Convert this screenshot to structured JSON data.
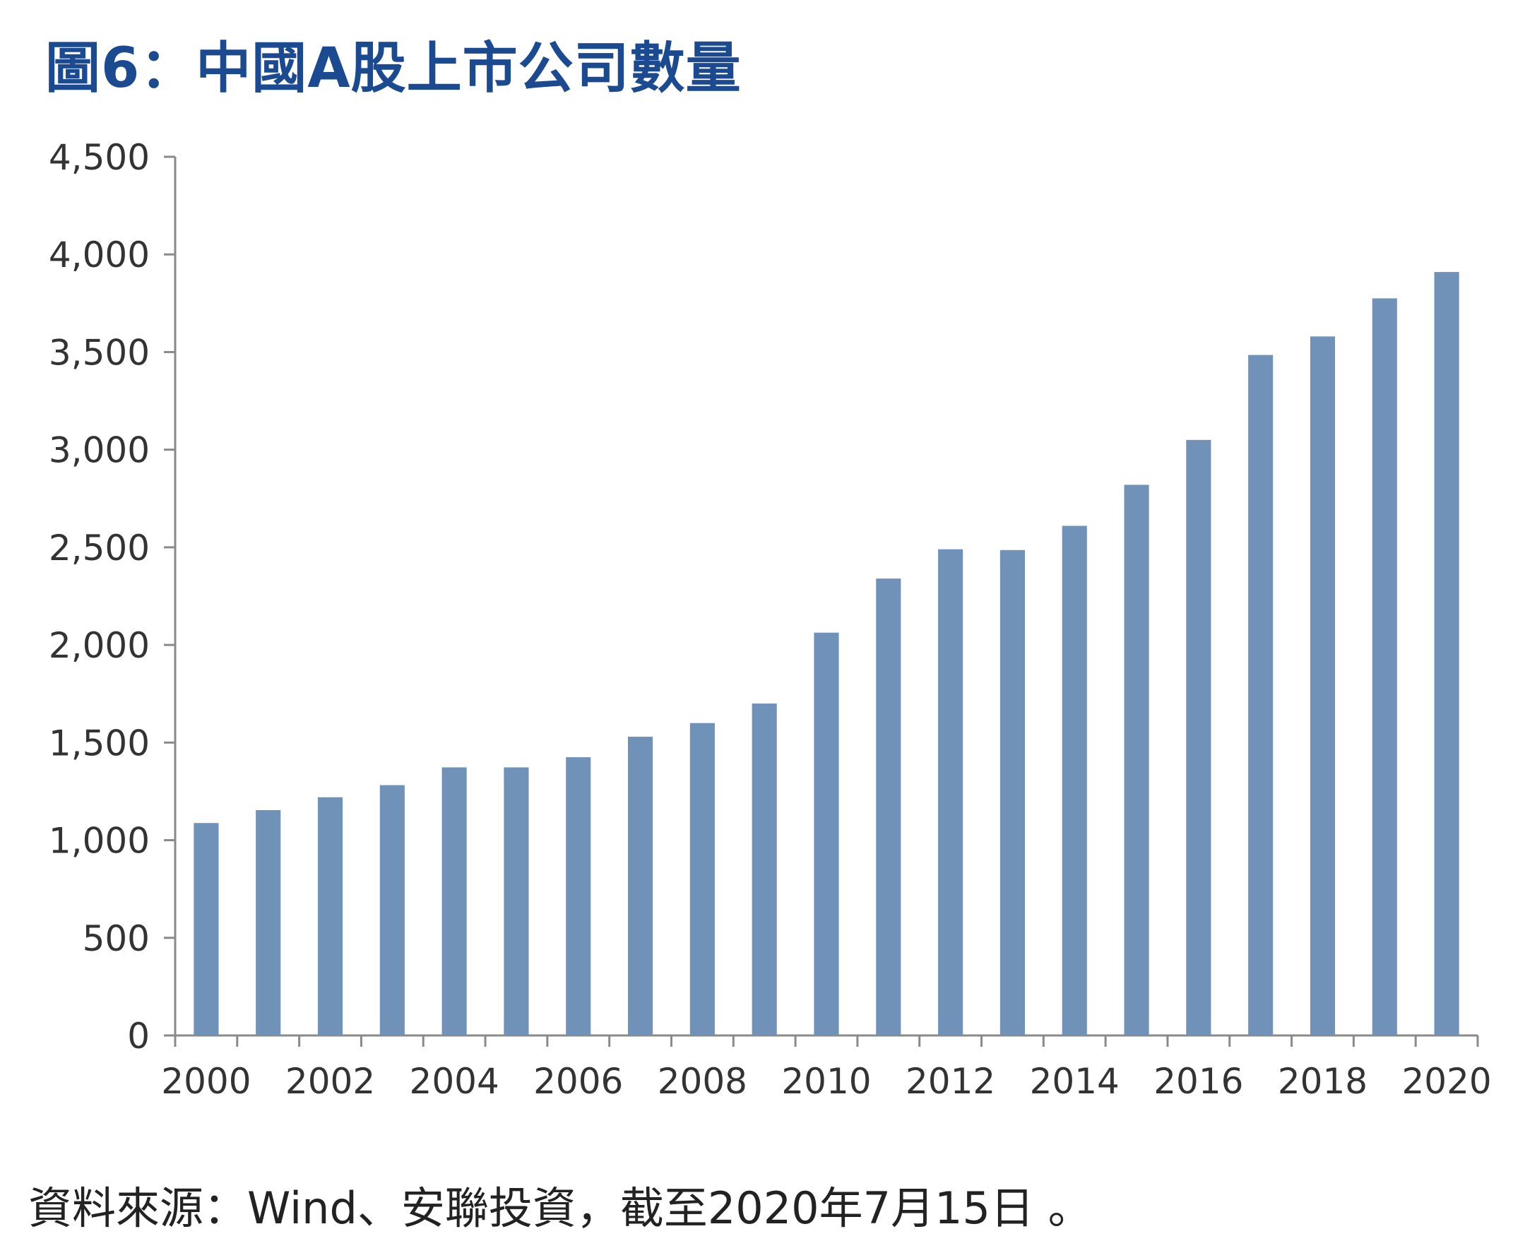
{
  "title": "圖6：中國A股上市公司數量",
  "source": "資料來源：Wind、安聯投資，截至2020年7月15日 。",
  "colors": {
    "title": "#1b4a91",
    "bar": "#7092b8",
    "axis": "#8a8a8a",
    "tick_text": "#333333"
  },
  "chart_data": {
    "type": "bar",
    "title": "圖6：中國A股上市公司數量",
    "xlabel": "",
    "ylabel": "",
    "ylim": [
      0,
      4500
    ],
    "yticks": [
      0,
      500,
      1000,
      1500,
      2000,
      2500,
      3000,
      3500,
      4000,
      4500
    ],
    "ytick_labels": [
      "0",
      "500",
      "1,000",
      "1,500",
      "2,000",
      "2,500",
      "3,000",
      "3,500",
      "4,000",
      "4,500"
    ],
    "categories": [
      "2000",
      "2001",
      "2002",
      "2003",
      "2004",
      "2005",
      "2006",
      "2007",
      "2008",
      "2009",
      "2010",
      "2011",
      "2012",
      "2013",
      "2014",
      "2015",
      "2016",
      "2017",
      "2018",
      "2019",
      "2020"
    ],
    "xtick_labels": [
      "2000",
      "2002",
      "2004",
      "2006",
      "2008",
      "2010",
      "2012",
      "2014",
      "2016",
      "2018",
      "2020"
    ],
    "values": [
      1088,
      1154,
      1220,
      1282,
      1373,
      1373,
      1425,
      1530,
      1600,
      1700,
      2063,
      2340,
      2490,
      2486,
      2610,
      2820,
      3050,
      3485,
      3580,
      3775,
      3910
    ],
    "grid": false,
    "legend": "none"
  }
}
